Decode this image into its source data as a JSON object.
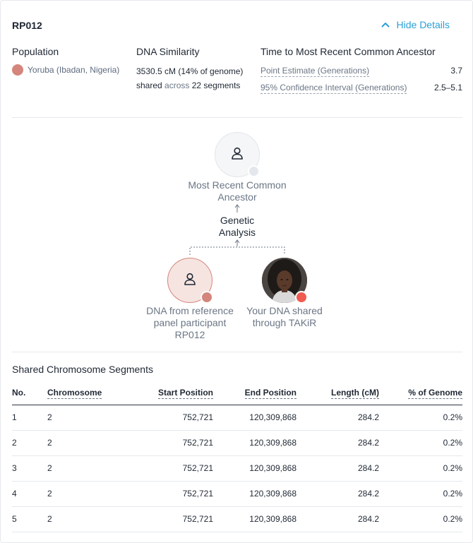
{
  "header": {
    "title": "RP012",
    "toggle_label": "Hide Details"
  },
  "population": {
    "heading": "Population",
    "value": "Yoruba (Ibadan, Nigeria)",
    "color": "#d4867c"
  },
  "similarity": {
    "heading": "DNA Similarity",
    "text_before": "3530.5 cM (14% of genome) shared ",
    "text_muted": "across",
    "text_after": " 22 segments"
  },
  "tmrca": {
    "heading": "Time to Most Recent Common Ancestor",
    "rows": [
      {
        "label": "Point Estimate (Generations)",
        "value": "3.7"
      },
      {
        "label": "95% Confidence Interval (Generations)",
        "value": "2.5–5.1"
      }
    ]
  },
  "diagram": {
    "ancestor_label": "Most Recent Common Ancestor",
    "analysis_label": "Genetic Analysis",
    "reference_label": "DNA from reference panel participant RP012",
    "you_label": "Your DNA shared through TAKiR",
    "icons": {
      "ancestor": "person-icon",
      "reference": "person-icon",
      "you": "user-photo-avatar"
    },
    "colors": {
      "reference": "#d4867c",
      "you": "#f05a50",
      "ancestor": "#e4e7ec"
    }
  },
  "segments": {
    "title": "Shared Chromosome Segments",
    "columns": [
      "No.",
      "Chromosome",
      "Start Position",
      "End Position",
      "Length (cM)",
      "% of Genome"
    ],
    "rows": [
      [
        "1",
        "2",
        "752,721",
        "120,309,868",
        "284.2",
        "0.2%"
      ],
      [
        "2",
        "2",
        "752,721",
        "120,309,868",
        "284.2",
        "0.2%"
      ],
      [
        "3",
        "2",
        "752,721",
        "120,309,868",
        "284.2",
        "0.2%"
      ],
      [
        "4",
        "2",
        "752,721",
        "120,309,868",
        "284.2",
        "0.2%"
      ],
      [
        "5",
        "2",
        "752,721",
        "120,309,868",
        "284.2",
        "0.2%"
      ]
    ]
  },
  "accent_color": "#2b9fd6"
}
